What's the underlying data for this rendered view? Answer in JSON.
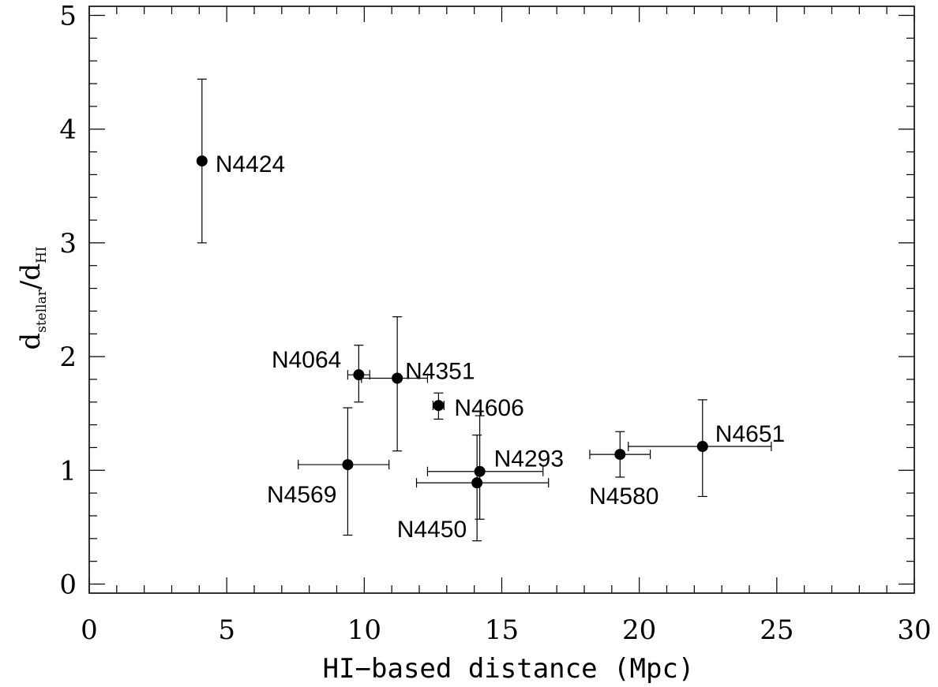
{
  "chart_data": {
    "type": "scatter",
    "title": "",
    "xlabel": "HI−based distance (Mpc)",
    "ylabel": {
      "main": "d",
      "num_sub": "stellar",
      "slash": "/",
      "den": "d",
      "den_sub": "HI"
    },
    "xlim": [
      0,
      30
    ],
    "ylim": [
      -0.08,
      5.08
    ],
    "x_ticks": [
      0,
      5,
      10,
      15,
      20,
      25,
      30
    ],
    "x_tick_labels": [
      "0",
      "5",
      "10",
      "15",
      "20",
      "25",
      "30"
    ],
    "y_ticks": [
      0,
      1,
      2,
      3,
      4,
      5
    ],
    "y_tick_labels": [
      "0",
      "1",
      "2",
      "3",
      "4",
      "5"
    ],
    "x_minor_step": 1,
    "y_minor_step": 0.2,
    "grid": false,
    "points": [
      {
        "label": "N4424",
        "x": 4.1,
        "y": 3.72,
        "xerr": [
          0.05,
          0.05
        ],
        "yerr": [
          0.72,
          0.72
        ]
      },
      {
        "label": "N4064",
        "x": 9.8,
        "y": 1.84,
        "xerr": [
          0.4,
          0.4
        ],
        "yerr": [
          0.24,
          0.26
        ]
      },
      {
        "label": "N4351",
        "x": 11.2,
        "y": 1.81,
        "xerr": [
          1.3,
          1.1
        ],
        "yerr": [
          0.64,
          0.54
        ]
      },
      {
        "label": "N4606",
        "x": 12.7,
        "y": 1.57,
        "xerr": [
          0.2,
          0.2
        ],
        "yerr": [
          0.12,
          0.11
        ]
      },
      {
        "label": "N4569",
        "x": 9.4,
        "y": 1.05,
        "xerr": [
          1.8,
          1.5
        ],
        "yerr": [
          0.62,
          0.5
        ]
      },
      {
        "label": "N4293",
        "x": 14.2,
        "y": 0.99,
        "xerr": [
          1.9,
          2.3
        ],
        "yerr": [
          0.42,
          0.49
        ]
      },
      {
        "label": "N4450",
        "x": 14.1,
        "y": 0.89,
        "xerr": [
          2.2,
          2.6
        ],
        "yerr": [
          0.51,
          0.42
        ]
      },
      {
        "label": "N4580",
        "x": 19.3,
        "y": 1.14,
        "xerr": [
          1.1,
          1.1
        ],
        "yerr": [
          0.2,
          0.2
        ]
      },
      {
        "label": "N4651",
        "x": 22.3,
        "y": 1.21,
        "xerr": [
          2.7,
          2.5
        ],
        "yerr": [
          0.44,
          0.41
        ]
      }
    ]
  }
}
